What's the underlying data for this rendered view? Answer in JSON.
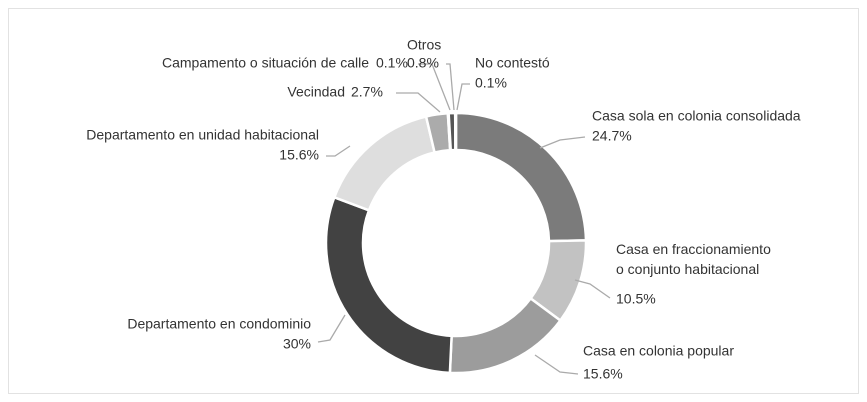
{
  "chart_data": {
    "type": "donut",
    "categories": [
      "Casa sola en colonia consolidada",
      "Casa en fraccionamiento o conjunto habitacional",
      "Casa en colonia popular",
      "Departamento en condominio",
      "Departamento en unidad habitacional",
      "Vecindad",
      "Campamento o situación de calle",
      "Otros",
      "No contestó"
    ],
    "values": [
      24.7,
      10.5,
      15.6,
      30,
      15.6,
      2.7,
      0.1,
      0.8,
      0.1
    ],
    "value_labels": [
      "24.7%",
      "10.5%",
      "15.6%",
      "30%",
      "15.6%",
      "2.7%",
      "0.1%",
      "0.8%",
      "0.1%"
    ],
    "colors": [
      "#7b7b7b",
      "#c2c2c2",
      "#9c9c9c",
      "#424242",
      "#dedede",
      "#ababab",
      "#cfcfcf",
      "#555555",
      "#8a8a8a"
    ]
  }
}
